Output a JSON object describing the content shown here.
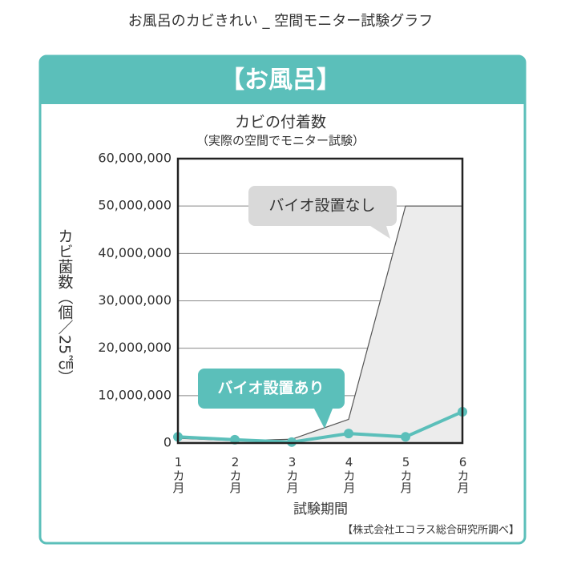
{
  "page_title": "お風呂のカビきれい _ 空間モニター試験グラフ",
  "header": "【お風呂】",
  "source": "【株式会社エコラス総合研究所調べ】",
  "chart_data": {
    "type": "line",
    "title": "カビの付着数",
    "subtitle": "（実際の空間でモニター試験）",
    "y_label": "カビ菌数（個／25㎠）",
    "x_label": "試験期間",
    "categories": [
      "1カ月",
      "2カ月",
      "3カ月",
      "4カ月",
      "5カ月",
      "6カ月"
    ],
    "series": [
      {
        "name": "バイオ設置なし",
        "color": "#555555",
        "values": [
          1000000,
          500000,
          800000,
          5000000,
          50000000,
          50000000
        ]
      },
      {
        "name": "バイオ設置あり",
        "color": "#5bbfba",
        "values": [
          1300000,
          700000,
          200000,
          2000000,
          1300000,
          6600000
        ]
      }
    ],
    "ylim": [
      0,
      60000000
    ],
    "yticks": [
      0,
      {
        "value": 10000000,
        "label": "10,000,000"
      },
      {
        "value": 20000000,
        "label": "20,000,000"
      },
      {
        "value": 30000000,
        "label": "30,000,000"
      },
      {
        "value": 40000000,
        "label": "40,000,000"
      },
      {
        "value": 50000000,
        "label": "50,000,000"
      },
      {
        "value": 60000000,
        "label": "60,000,000"
      }
    ],
    "grid": true
  }
}
